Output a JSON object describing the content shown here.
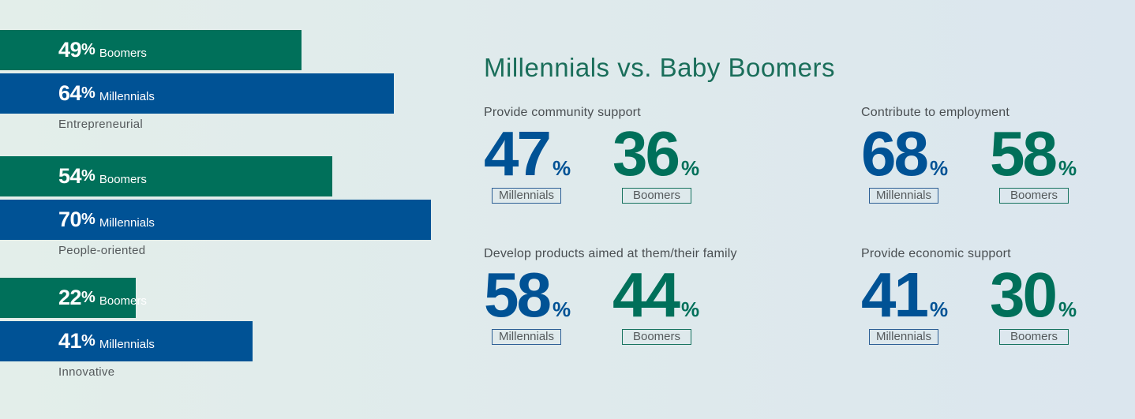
{
  "chart_data": [
    {
      "type": "bar",
      "orientation": "horizontal",
      "categories": [
        "Entrepreneurial",
        "People-oriented",
        "Innovative"
      ],
      "series": [
        {
          "name": "Boomers",
          "values": [
            49,
            54,
            22
          ],
          "color": "#00705a"
        },
        {
          "name": "Millennials",
          "values": [
            64,
            70,
            41
          ],
          "color": "#005295"
        }
      ],
      "unit": "%",
      "xlim": [
        0,
        100
      ]
    },
    {
      "type": "table",
      "title": "Millennials vs. Baby Boomers",
      "items": [
        {
          "label": "Provide community support",
          "millennials": 47,
          "boomers": 36
        },
        {
          "label": "Contribute to employment",
          "millennials": 68,
          "boomers": 58
        },
        {
          "label": "Develop products aimed at them/their family",
          "millennials": 58,
          "boomers": 44
        },
        {
          "label": "Provide economic support",
          "millennials": 41,
          "boomers": 30
        }
      ],
      "series_labels": {
        "millennials": "Millennials",
        "boomers": "Boomers"
      },
      "unit": "%"
    }
  ],
  "colors": {
    "boomers": "#00705a",
    "millennials": "#005295"
  }
}
